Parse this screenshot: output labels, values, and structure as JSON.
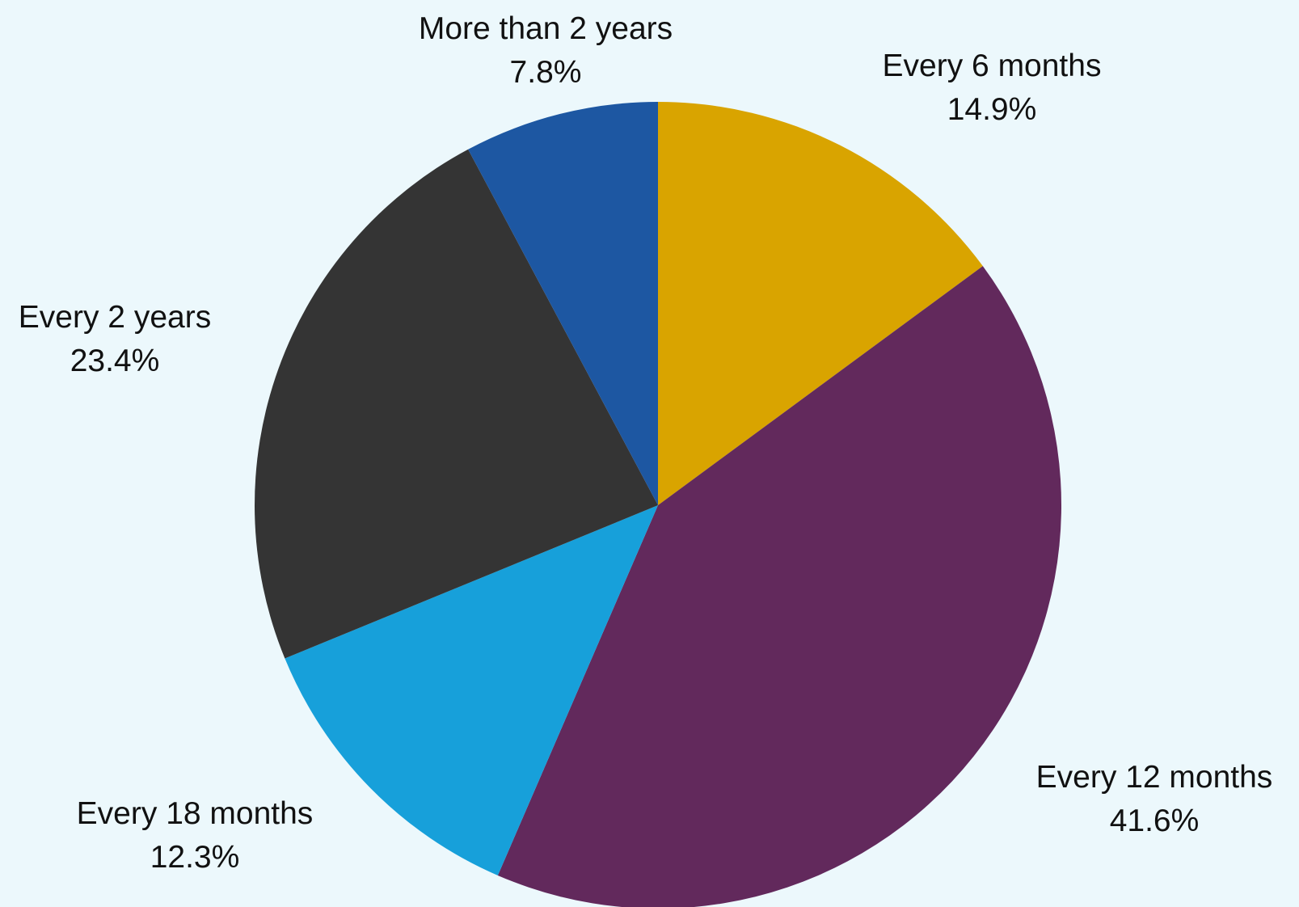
{
  "chart_data": {
    "type": "pie",
    "start_angle_deg": 0,
    "direction": "clockwise",
    "slices": [
      {
        "label": "Every 6 months",
        "value": 14.9,
        "value_label": "14.9%",
        "color": "#d9a400"
      },
      {
        "label": "Every 12 months",
        "value": 41.6,
        "value_label": "41.6%",
        "color": "#62295c"
      },
      {
        "label": "Every 18 months",
        "value": 12.3,
        "value_label": "12.3%",
        "color": "#17a0da"
      },
      {
        "label": "Every 2 years",
        "value": 23.4,
        "value_label": "23.4%",
        "color": "#343434"
      },
      {
        "label": "More than 2 years",
        "value": 7.8,
        "value_label": "7.8%",
        "color": "#1d57a2"
      }
    ]
  },
  "background_color": "#ecf8fc"
}
